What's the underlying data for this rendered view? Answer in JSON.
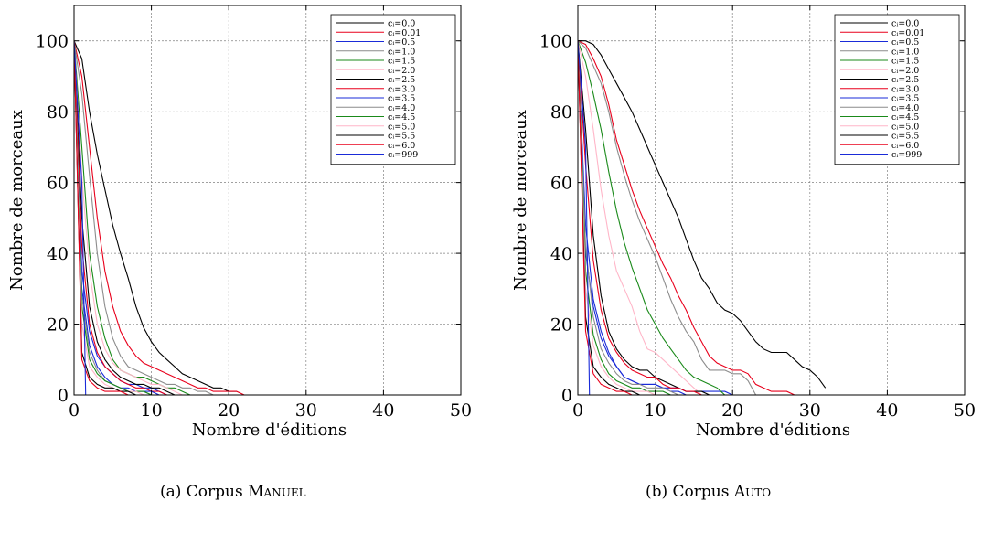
{
  "captions": [
    {
      "prefix": "(a) Corpus ",
      "name": "Manuel"
    },
    {
      "prefix": "(b) Corpus ",
      "name": "Auto"
    }
  ],
  "legend_colors": [
    "#000000",
    "#e8001c",
    "#1a2bd8",
    "#8c8c8c",
    "#1a8a1a",
    "#ffb6c8",
    "#000000",
    "#e8001c",
    "#1a2bd8",
    "#8c8c8c",
    "#1a8a1a",
    "#ffb6c8",
    "#000000",
    "#e8001c",
    "#1a2bd8"
  ],
  "chart_data": [
    {
      "type": "line",
      "xlabel": "Nombre d'éditions",
      "ylabel": "Nombre de morceaux",
      "xlim": [
        0,
        50
      ],
      "ylim": [
        0,
        110
      ],
      "xticks": [
        0,
        10,
        20,
        30,
        40,
        50
      ],
      "yticks": [
        0,
        20,
        40,
        60,
        80,
        100
      ],
      "grid": true,
      "legend": "top-right",
      "series": [
        {
          "name": "cᵢ=0.0",
          "x": [
            0,
            1,
            2,
            3,
            4,
            5,
            6,
            7,
            8,
            9,
            10,
            11,
            12,
            13,
            14,
            15,
            16,
            17,
            18,
            19,
            20,
            21
          ],
          "y": [
            100,
            95,
            80,
            68,
            58,
            48,
            40,
            33,
            25,
            19,
            15,
            12,
            10,
            8,
            6,
            5,
            4,
            3,
            2,
            2,
            1,
            1
          ]
        },
        {
          "name": "cᵢ=0.01",
          "x": [
            0,
            1,
            2,
            3,
            4,
            5,
            6,
            7,
            8,
            9,
            10,
            11,
            12,
            13,
            14,
            15,
            16,
            17,
            18,
            19,
            20,
            21,
            22
          ],
          "y": [
            100,
            90,
            70,
            50,
            35,
            25,
            18,
            14,
            11,
            9,
            8,
            7,
            6,
            5,
            4,
            3,
            2,
            2,
            1,
            1,
            1,
            1,
            0
          ]
        },
        {
          "name": "cᵢ=0.5",
          "x": [
            0,
            1,
            2,
            3,
            4,
            5,
            6,
            7,
            8,
            9,
            10,
            11,
            12
          ],
          "y": [
            100,
            35,
            18,
            11,
            8,
            6,
            4,
            3,
            3,
            2,
            2,
            1,
            0
          ]
        },
        {
          "name": "cᵢ=1.0",
          "x": [
            0,
            1,
            2,
            3,
            4,
            5,
            6,
            7,
            8,
            9,
            10,
            11,
            12,
            13,
            14,
            15,
            16,
            17,
            18
          ],
          "y": [
            100,
            85,
            62,
            40,
            25,
            16,
            11,
            8,
            7,
            6,
            5,
            4,
            3,
            3,
            2,
            2,
            1,
            1,
            0
          ]
        },
        {
          "name": "cᵢ=1.5",
          "x": [
            0,
            1,
            2,
            3,
            4,
            5,
            6,
            7,
            8,
            9,
            10,
            11,
            12,
            13,
            14,
            15
          ],
          "y": [
            100,
            70,
            40,
            25,
            16,
            10,
            7,
            6,
            5,
            5,
            4,
            3,
            2,
            2,
            1,
            0
          ]
        },
        {
          "name": "cᵢ=2.0",
          "x": [
            0,
            1,
            2,
            3,
            4,
            5,
            6,
            7,
            8,
            9,
            10,
            11,
            12,
            13,
            14
          ],
          "y": [
            100,
            62,
            35,
            20,
            13,
            9,
            7,
            6,
            5,
            4,
            3,
            3,
            2,
            1,
            0
          ]
        },
        {
          "name": "cᵢ=2.5",
          "x": [
            0,
            1,
            2,
            3,
            4,
            5,
            6,
            7,
            8,
            9,
            10,
            11,
            12,
            13
          ],
          "y": [
            100,
            50,
            25,
            15,
            10,
            7,
            5,
            4,
            3,
            3,
            2,
            2,
            1,
            0
          ]
        },
        {
          "name": "cᵢ=3.0",
          "x": [
            0,
            1,
            2,
            3,
            4,
            5,
            6,
            7,
            8,
            9,
            10,
            11,
            12
          ],
          "y": [
            100,
            42,
            20,
            12,
            8,
            6,
            4,
            3,
            2,
            2,
            1,
            1,
            0
          ]
        },
        {
          "name": "cᵢ=3.5",
          "x": [
            0,
            1,
            2,
            3,
            4,
            5,
            6,
            7,
            8,
            9,
            10,
            11
          ],
          "y": [
            100,
            30,
            14,
            8,
            5,
            3,
            2,
            2,
            1,
            1,
            1,
            0
          ]
        },
        {
          "name": "cᵢ=4.0",
          "x": [
            0,
            1,
            2,
            3,
            4,
            5,
            6,
            7,
            8,
            9,
            10
          ],
          "y": [
            100,
            28,
            12,
            7,
            4,
            3,
            2,
            1,
            1,
            1,
            0
          ]
        },
        {
          "name": "cᵢ=4.5",
          "x": [
            0,
            1,
            2,
            3,
            4,
            5,
            6,
            7,
            8,
            9,
            10
          ],
          "y": [
            100,
            25,
            10,
            6,
            4,
            3,
            2,
            1,
            1,
            1,
            0
          ]
        },
        {
          "name": "cᵢ=5.0",
          "x": [
            0,
            1,
            2,
            3,
            4,
            5,
            6,
            7,
            8,
            9
          ],
          "y": [
            100,
            20,
            8,
            5,
            3,
            2,
            1,
            1,
            1,
            0
          ]
        },
        {
          "name": "cᵢ=5.5",
          "x": [
            0,
            1,
            2,
            3,
            4,
            5,
            6,
            7,
            8
          ],
          "y": [
            100,
            12,
            5,
            3,
            2,
            2,
            1,
            1,
            0
          ]
        },
        {
          "name": "cᵢ=6.0",
          "x": [
            0,
            1,
            2,
            3,
            4,
            5,
            6,
            7,
            8
          ],
          "y": [
            100,
            10,
            4,
            2,
            1,
            1,
            1,
            0,
            0
          ]
        },
        {
          "name": "cᵢ=999",
          "x": [
            0,
            1,
            1.5,
            2
          ],
          "y": [
            100,
            60,
            0,
            0
          ]
        }
      ]
    },
    {
      "type": "line",
      "xlabel": "Nombre d'éditions",
      "ylabel": "Nombre de morceaux",
      "xlim": [
        0,
        50
      ],
      "ylim": [
        0,
        110
      ],
      "xticks": [
        0,
        10,
        20,
        30,
        40,
        50
      ],
      "yticks": [
        0,
        20,
        40,
        60,
        80,
        100
      ],
      "grid": true,
      "legend": "top-right",
      "series": [
        {
          "name": "cᵢ=0.0",
          "x": [
            0,
            1,
            2,
            3,
            4,
            5,
            6,
            7,
            8,
            9,
            10,
            11,
            12,
            13,
            14,
            15,
            16,
            17,
            18,
            19,
            20,
            21,
            22,
            23,
            24,
            25,
            26,
            27,
            28,
            29,
            30,
            31,
            32
          ],
          "y": [
            100,
            100,
            99,
            96,
            92,
            88,
            84,
            80,
            75,
            70,
            65,
            60,
            55,
            50,
            44,
            38,
            33,
            30,
            26,
            24,
            23,
            21,
            18,
            15,
            13,
            12,
            12,
            12,
            10,
            8,
            7,
            5,
            2
          ]
        },
        {
          "name": "cᵢ=0.01",
          "x": [
            0,
            1,
            2,
            3,
            4,
            5,
            6,
            7,
            8,
            9,
            10,
            11,
            12,
            13,
            14,
            15,
            16,
            17,
            18,
            19,
            20,
            21,
            22,
            23,
            24,
            25,
            26,
            27,
            28
          ],
          "y": [
            100,
            99,
            95,
            90,
            82,
            72,
            65,
            58,
            52,
            47,
            42,
            37,
            33,
            28,
            24,
            19,
            15,
            11,
            9,
            8,
            7,
            7,
            6,
            3,
            2,
            1,
            1,
            1,
            0
          ]
        },
        {
          "name": "cᵢ=0.5",
          "x": [
            0,
            1,
            2,
            3,
            4,
            5,
            6,
            7,
            8,
            9,
            10,
            11,
            12,
            13,
            14,
            15,
            16,
            17,
            18,
            19,
            20
          ],
          "y": [
            100,
            40,
            25,
            16,
            11,
            8,
            5,
            4,
            3,
            3,
            3,
            2,
            2,
            2,
            1,
            1,
            1,
            1,
            1,
            1,
            0
          ]
        },
        {
          "name": "cᵢ=1.0",
          "x": [
            0,
            1,
            2,
            3,
            4,
            5,
            6,
            7,
            8,
            9,
            10,
            11,
            12,
            13,
            14,
            15,
            16,
            17,
            18,
            19,
            20,
            21,
            22,
            23
          ],
          "y": [
            100,
            98,
            93,
            88,
            80,
            70,
            62,
            55,
            49,
            44,
            39,
            33,
            27,
            22,
            18,
            15,
            10,
            7,
            7,
            7,
            6,
            6,
            4,
            0
          ]
        },
        {
          "name": "cᵢ=1.5",
          "x": [
            0,
            1,
            2,
            3,
            4,
            5,
            6,
            7,
            8,
            9,
            10,
            11,
            12,
            13,
            14,
            15,
            16,
            17,
            18,
            19
          ],
          "y": [
            100,
            94,
            85,
            75,
            63,
            52,
            43,
            36,
            30,
            24,
            20,
            16,
            13,
            10,
            7,
            5,
            4,
            3,
            2,
            0
          ]
        },
        {
          "name": "cᵢ=2.0",
          "x": [
            0,
            1,
            2,
            3,
            4,
            5,
            6,
            7,
            8,
            9,
            10,
            11,
            12,
            13,
            14,
            15,
            16
          ],
          "y": [
            100,
            90,
            75,
            58,
            45,
            35,
            30,
            25,
            18,
            13,
            12,
            10,
            8,
            6,
            4,
            2,
            0
          ]
        },
        {
          "name": "cᵢ=2.5",
          "x": [
            0,
            1,
            2,
            3,
            4,
            5,
            6,
            7,
            8,
            9,
            10,
            11,
            12,
            13,
            14,
            15,
            16,
            17
          ],
          "y": [
            100,
            75,
            45,
            28,
            18,
            13,
            10,
            8,
            7,
            7,
            5,
            4,
            3,
            2,
            1,
            1,
            1,
            0
          ]
        },
        {
          "name": "cᵢ=3.0",
          "x": [
            0,
            1,
            2,
            3,
            4,
            5,
            6,
            7,
            8,
            9,
            10,
            11,
            12,
            13,
            14,
            15,
            16
          ],
          "y": [
            100,
            65,
            38,
            24,
            16,
            12,
            9,
            7,
            6,
            5,
            5,
            3,
            2,
            2,
            1,
            1,
            0
          ]
        },
        {
          "name": "cᵢ=3.5",
          "x": [
            0,
            1,
            2,
            3,
            4,
            5,
            6,
            7,
            8,
            9,
            10,
            11,
            12,
            13,
            14
          ],
          "y": [
            100,
            48,
            27,
            18,
            12,
            8,
            5,
            4,
            3,
            3,
            3,
            2,
            1,
            1,
            0
          ]
        },
        {
          "name": "cᵢ=4.0",
          "x": [
            0,
            1,
            2,
            3,
            4,
            5,
            6,
            7,
            8,
            9,
            10,
            11,
            12,
            13
          ],
          "y": [
            100,
            42,
            22,
            13,
            9,
            6,
            4,
            3,
            3,
            2,
            2,
            2,
            1,
            0
          ]
        },
        {
          "name": "cᵢ=4.5",
          "x": [
            0,
            1,
            2,
            3,
            4,
            5,
            6,
            7,
            8,
            9,
            10,
            11,
            12
          ],
          "y": [
            100,
            35,
            17,
            10,
            6,
            4,
            3,
            2,
            2,
            1,
            1,
            1,
            0
          ]
        },
        {
          "name": "cᵢ=5.0",
          "x": [
            0,
            1,
            2,
            3,
            4,
            5,
            6,
            7,
            8,
            9,
            10
          ],
          "y": [
            100,
            30,
            14,
            8,
            5,
            3,
            2,
            1,
            1,
            1,
            0
          ]
        },
        {
          "name": "cᵢ=5.5",
          "x": [
            0,
            1,
            2,
            3,
            4,
            5,
            6,
            7,
            8
          ],
          "y": [
            100,
            22,
            8,
            5,
            3,
            2,
            1,
            1,
            0
          ]
        },
        {
          "name": "cᵢ=6.0",
          "x": [
            0,
            1,
            2,
            3,
            4,
            5,
            6,
            7
          ],
          "y": [
            100,
            18,
            6,
            3,
            2,
            1,
            1,
            0
          ]
        },
        {
          "name": "cᵢ=999",
          "x": [
            0,
            1,
            1.5,
            2
          ],
          "y": [
            100,
            70,
            0,
            0
          ]
        }
      ]
    }
  ]
}
